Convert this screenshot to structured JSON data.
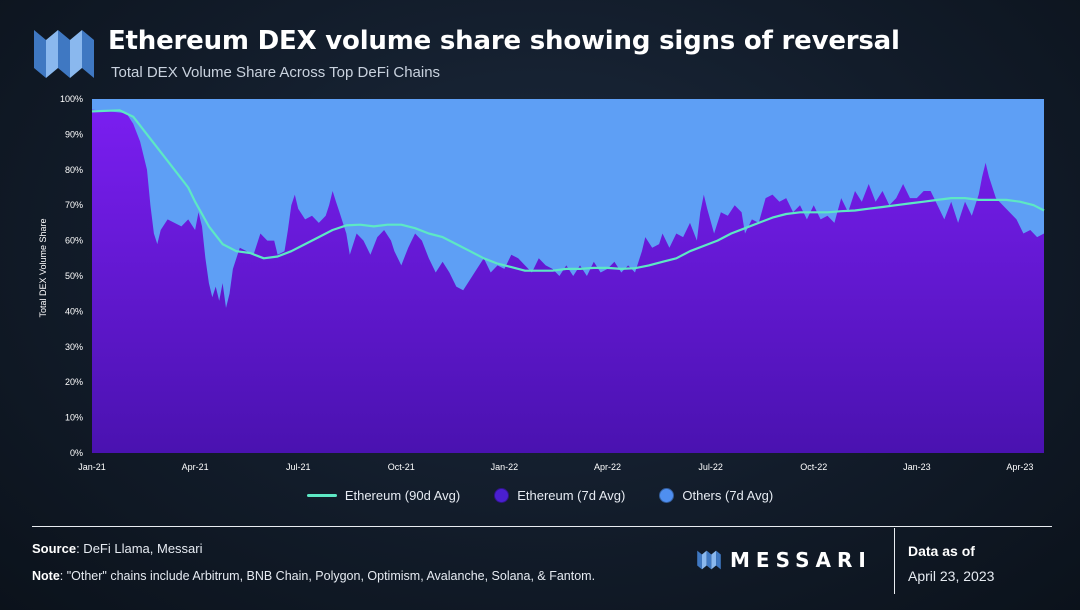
{
  "header": {
    "title": "Ethereum DEX volume share showing signs of reversal",
    "subtitle": "Total DEX Volume Share Across Top DeFi Chains"
  },
  "colors": {
    "ethereum_90d": "#5de8c4",
    "ethereum_7d": "#6a13e0",
    "others_7d": "#5e9ff5",
    "logo_blue": "#6ea8e8"
  },
  "chart_data": {
    "type": "area",
    "ylabel": "Total DEX Volume Share",
    "xlabel": "",
    "ylim": [
      0,
      100
    ],
    "yticks": [
      "0%",
      "10%",
      "20%",
      "30%",
      "40%",
      "50%",
      "60%",
      "70%",
      "80%",
      "90%",
      "100%"
    ],
    "xticks": [
      "Jan-21",
      "Apr-21",
      "Jul-21",
      "Oct-21",
      "Jan-22",
      "Apr-22",
      "Jul-22",
      "Oct-22",
      "Jan-23",
      "Apr-23"
    ],
    "x_range_months": [
      0,
      27.7
    ],
    "legend_position": "bottom",
    "series": [
      {
        "name": "Ethereum (90d Avg)",
        "kind": "line",
        "points": [
          [
            0,
            96.5
          ],
          [
            0.8,
            96.8
          ],
          [
            1.2,
            95
          ],
          [
            1.6,
            90
          ],
          [
            2,
            85
          ],
          [
            2.4,
            80
          ],
          [
            2.8,
            75
          ],
          [
            3,
            71
          ],
          [
            3.4,
            64
          ],
          [
            3.8,
            59
          ],
          [
            4.2,
            57
          ],
          [
            4.6,
            56.5
          ],
          [
            5,
            55
          ],
          [
            5.4,
            55.5
          ],
          [
            5.8,
            57
          ],
          [
            6.2,
            59
          ],
          [
            6.6,
            61
          ],
          [
            7,
            63
          ],
          [
            7.4,
            64.3
          ],
          [
            7.8,
            64.5
          ],
          [
            8.2,
            64
          ],
          [
            8.6,
            64.5
          ],
          [
            9,
            64.5
          ],
          [
            9.4,
            63.5
          ],
          [
            9.8,
            62
          ],
          [
            10.2,
            61
          ],
          [
            10.6,
            59
          ],
          [
            11,
            57
          ],
          [
            11.4,
            55
          ],
          [
            11.8,
            53.5
          ],
          [
            12.2,
            52.5
          ],
          [
            12.6,
            51.5
          ],
          [
            13,
            51.5
          ],
          [
            13.4,
            51.5
          ],
          [
            13.8,
            52
          ],
          [
            14.2,
            52
          ],
          [
            14.6,
            52.3
          ],
          [
            15,
            52.3
          ],
          [
            15.4,
            52
          ],
          [
            15.8,
            52.2
          ],
          [
            16.2,
            53
          ],
          [
            16.6,
            54
          ],
          [
            17,
            55
          ],
          [
            17.4,
            57
          ],
          [
            17.8,
            58.5
          ],
          [
            18.2,
            60
          ],
          [
            18.6,
            62
          ],
          [
            19,
            63.5
          ],
          [
            19.4,
            65
          ],
          [
            19.8,
            66.5
          ],
          [
            20.2,
            67.5
          ],
          [
            20.6,
            68
          ],
          [
            21,
            68
          ],
          [
            21.4,
            68
          ],
          [
            21.8,
            68.3
          ],
          [
            22.2,
            68.5
          ],
          [
            22.6,
            69
          ],
          [
            23,
            69.5
          ],
          [
            23.4,
            70
          ],
          [
            23.8,
            70.5
          ],
          [
            24.2,
            71
          ],
          [
            24.6,
            71.5
          ],
          [
            25,
            72
          ],
          [
            25.4,
            72
          ],
          [
            25.8,
            71.5
          ],
          [
            26.2,
            71.5
          ],
          [
            26.6,
            71.5
          ],
          [
            27,
            71
          ],
          [
            27.4,
            70
          ],
          [
            27.7,
            68.5
          ]
        ]
      },
      {
        "name": "Ethereum (7d Avg)",
        "kind": "area",
        "points": [
          [
            0,
            97
          ],
          [
            0.5,
            96.5
          ],
          [
            1,
            96
          ],
          [
            1.2,
            93
          ],
          [
            1.4,
            88
          ],
          [
            1.6,
            80
          ],
          [
            1.7,
            70
          ],
          [
            1.8,
            62
          ],
          [
            1.9,
            59
          ],
          [
            2,
            63
          ],
          [
            2.2,
            66
          ],
          [
            2.4,
            65
          ],
          [
            2.6,
            64
          ],
          [
            2.8,
            66
          ],
          [
            3,
            63
          ],
          [
            3.1,
            68
          ],
          [
            3.2,
            64
          ],
          [
            3.3,
            55
          ],
          [
            3.4,
            48
          ],
          [
            3.5,
            44
          ],
          [
            3.6,
            47
          ],
          [
            3.7,
            43
          ],
          [
            3.8,
            48
          ],
          [
            3.9,
            41
          ],
          [
            4,
            45
          ],
          [
            4.1,
            52
          ],
          [
            4.3,
            58
          ],
          [
            4.5,
            57
          ],
          [
            4.7,
            56
          ],
          [
            4.9,
            62
          ],
          [
            5.1,
            60
          ],
          [
            5.3,
            60
          ],
          [
            5.4,
            56
          ],
          [
            5.6,
            57
          ],
          [
            5.7,
            63
          ],
          [
            5.8,
            70
          ],
          [
            5.9,
            73
          ],
          [
            6,
            69
          ],
          [
            6.2,
            66
          ],
          [
            6.4,
            67
          ],
          [
            6.6,
            65
          ],
          [
            6.8,
            67
          ],
          [
            6.9,
            70
          ],
          [
            7,
            74
          ],
          [
            7.1,
            71
          ],
          [
            7.2,
            68
          ],
          [
            7.4,
            62
          ],
          [
            7.5,
            56
          ],
          [
            7.7,
            62
          ],
          [
            7.9,
            60
          ],
          [
            8.1,
            56
          ],
          [
            8.3,
            61
          ],
          [
            8.5,
            63
          ],
          [
            8.7,
            60
          ],
          [
            8.8,
            57
          ],
          [
            9,
            53
          ],
          [
            9.2,
            58
          ],
          [
            9.4,
            62
          ],
          [
            9.6,
            60
          ],
          [
            9.8,
            55
          ],
          [
            10,
            51
          ],
          [
            10.2,
            54
          ],
          [
            10.4,
            51
          ],
          [
            10.6,
            47
          ],
          [
            10.8,
            46
          ],
          [
            11,
            49
          ],
          [
            11.2,
            52
          ],
          [
            11.4,
            55
          ],
          [
            11.6,
            51
          ],
          [
            11.8,
            53
          ],
          [
            12,
            52
          ],
          [
            12.2,
            56
          ],
          [
            12.4,
            55
          ],
          [
            12.6,
            53
          ],
          [
            12.8,
            51
          ],
          [
            13,
            55
          ],
          [
            13.2,
            53
          ],
          [
            13.4,
            52
          ],
          [
            13.6,
            50
          ],
          [
            13.8,
            53
          ],
          [
            14,
            50
          ],
          [
            14.2,
            53
          ],
          [
            14.4,
            50
          ],
          [
            14.6,
            54
          ],
          [
            14.8,
            51
          ],
          [
            15,
            52
          ],
          [
            15.2,
            54
          ],
          [
            15.4,
            51
          ],
          [
            15.6,
            53
          ],
          [
            15.8,
            51
          ],
          [
            16,
            57
          ],
          [
            16.1,
            61
          ],
          [
            16.3,
            58
          ],
          [
            16.5,
            59
          ],
          [
            16.6,
            62
          ],
          [
            16.8,
            58
          ],
          [
            17,
            62
          ],
          [
            17.2,
            61
          ],
          [
            17.4,
            65
          ],
          [
            17.6,
            60
          ],
          [
            17.7,
            68
          ],
          [
            17.8,
            73
          ],
          [
            17.9,
            69
          ],
          [
            18.1,
            62
          ],
          [
            18.3,
            68
          ],
          [
            18.5,
            67
          ],
          [
            18.7,
            70
          ],
          [
            18.9,
            68
          ],
          [
            19,
            62
          ],
          [
            19.2,
            66
          ],
          [
            19.4,
            65
          ],
          [
            19.6,
            72
          ],
          [
            19.8,
            73
          ],
          [
            20,
            71
          ],
          [
            20.2,
            72
          ],
          [
            20.4,
            68
          ],
          [
            20.6,
            70
          ],
          [
            20.8,
            66
          ],
          [
            21,
            70
          ],
          [
            21.2,
            66
          ],
          [
            21.4,
            67
          ],
          [
            21.6,
            65
          ],
          [
            21.8,
            72
          ],
          [
            22,
            68
          ],
          [
            22.2,
            74
          ],
          [
            22.4,
            71
          ],
          [
            22.6,
            76
          ],
          [
            22.8,
            71
          ],
          [
            23,
            74
          ],
          [
            23.2,
            70
          ],
          [
            23.4,
            72
          ],
          [
            23.6,
            76
          ],
          [
            23.8,
            72
          ],
          [
            24,
            72
          ],
          [
            24.2,
            74
          ],
          [
            24.4,
            74
          ],
          [
            24.6,
            70
          ],
          [
            24.8,
            66
          ],
          [
            25,
            71
          ],
          [
            25.2,
            65
          ],
          [
            25.4,
            71
          ],
          [
            25.6,
            67
          ],
          [
            25.8,
            73
          ],
          [
            25.9,
            78
          ],
          [
            26,
            82
          ],
          [
            26.1,
            78
          ],
          [
            26.3,
            72
          ],
          [
            26.5,
            70
          ],
          [
            26.7,
            68
          ],
          [
            26.9,
            66
          ],
          [
            27.1,
            62
          ],
          [
            27.3,
            63
          ],
          [
            27.5,
            61
          ],
          [
            27.7,
            62
          ]
        ]
      },
      {
        "name": "Others (7d Avg)",
        "kind": "area-fill-to-top"
      }
    ]
  },
  "footer": {
    "source_label": "Source",
    "source_text": ": DeFi Llama, Messari",
    "note_label": "Note",
    "note_text": ": \"Other\" chains include Arbitrum, BNB Chain, Polygon, Optimism, Avalanche, Solana, & Fantom.",
    "brand": "MESSARI",
    "asof_label": "Data as of",
    "asof_date": "April 23, 2023"
  }
}
